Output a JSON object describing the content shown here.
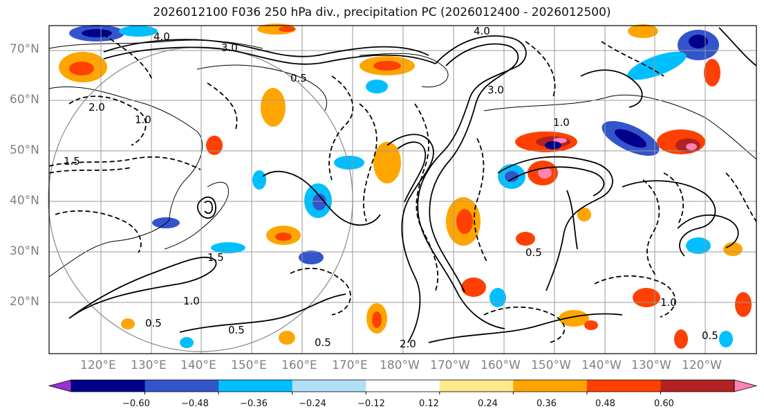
{
  "title": "2026012100 F036 250 hPa div., precipitation PC (2026012400 - 2026012500)",
  "latitude_labels": [
    "70°N",
    "60°N",
    "50°N",
    "40°N",
    "30°N",
    "20°N"
  ],
  "longitude_labels": [
    "120°E",
    "130°E",
    "140°E",
    "150°E",
    "160°E",
    "170°E",
    "180°W",
    "170°W",
    "160°W",
    "150°W",
    "140°W",
    "130°W",
    "120°W"
  ],
  "contour_labels": [
    "4.0",
    "3.0",
    "2.0",
    "1.5",
    "1.0",
    "0.5",
    "0.5",
    "1.0",
    "1.5",
    "0.5",
    "4.0",
    "3.0",
    "1.0",
    "0.5",
    "1.0",
    "0.5",
    "2.0",
    "0.5"
  ],
  "colorbar": {
    "ticks": [
      "−0.60",
      "−0.48",
      "−0.36",
      "−0.24",
      "−0.12",
      "0.12",
      "0.24",
      "0.36",
      "0.48",
      "0.60"
    ],
    "colors": [
      "#9b30d4",
      "#00008b",
      "#3355cc",
      "#00bfff",
      "#b0e0f8",
      "#ffffff",
      "#ffe98a",
      "#ffa500",
      "#ff4000",
      "#b22222",
      "#ff82b4"
    ]
  },
  "colors": {
    "coast": "#000000",
    "grid": "#999999",
    "contour": "#000000",
    "label_gray": "#808080"
  }
}
